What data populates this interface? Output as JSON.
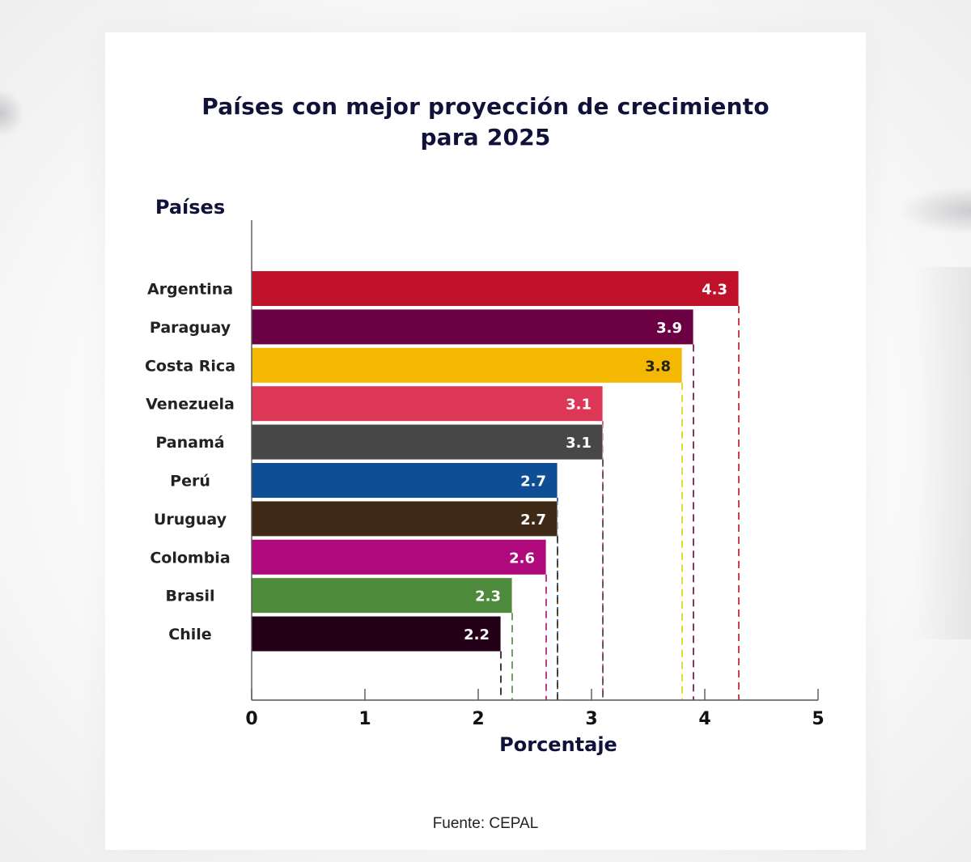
{
  "chart_data": {
    "type": "bar",
    "orientation": "horizontal",
    "title": "Países con mejor proyección de crecimiento para 2025",
    "title_lines": [
      "Países con mejor proyección de crecimiento",
      "para 2025"
    ],
    "ylabel": "Países",
    "xlabel": "Porcentaje",
    "categories": [
      "Argentina",
      "Paraguay",
      "Costa Rica",
      "Venezuela",
      "Panamá",
      "Perú",
      "Uruguay",
      "Colombia",
      "Brasil",
      "Chile"
    ],
    "values": [
      4.3,
      3.9,
      3.8,
      3.1,
      3.1,
      2.7,
      2.7,
      2.6,
      2.3,
      2.2
    ],
    "value_labels": [
      "4.3",
      "3.9",
      "3.8",
      "3.1",
      "3.1",
      "2.7",
      "2.7",
      "2.6",
      "2.3",
      "2.2"
    ],
    "colors": [
      "#c0112a",
      "#6b0043",
      "#f4b800",
      "#dc3757",
      "#474747",
      "#0e4e94",
      "#3e2816",
      "#b0097b",
      "#4e8a3b",
      "#230018"
    ],
    "label_colors": [
      "#ffffff",
      "#ffffff",
      "#222222",
      "#ffffff",
      "#ffffff",
      "#ffffff",
      "#ffffff",
      "#ffffff",
      "#ffffff",
      "#ffffff"
    ],
    "dashed_line_colors": [
      "#c0112a",
      "#6b0043",
      "#d8d000",
      "#dc3757",
      "#474747",
      "#0e4e94",
      "#3e2816",
      "#b0097b",
      "#4e8a3b",
      "#230018"
    ],
    "xlim": [
      0,
      5
    ],
    "xticks": [
      0,
      1,
      2,
      3,
      4,
      5
    ],
    "grid": false,
    "source": "Fuente: CEPAL"
  }
}
